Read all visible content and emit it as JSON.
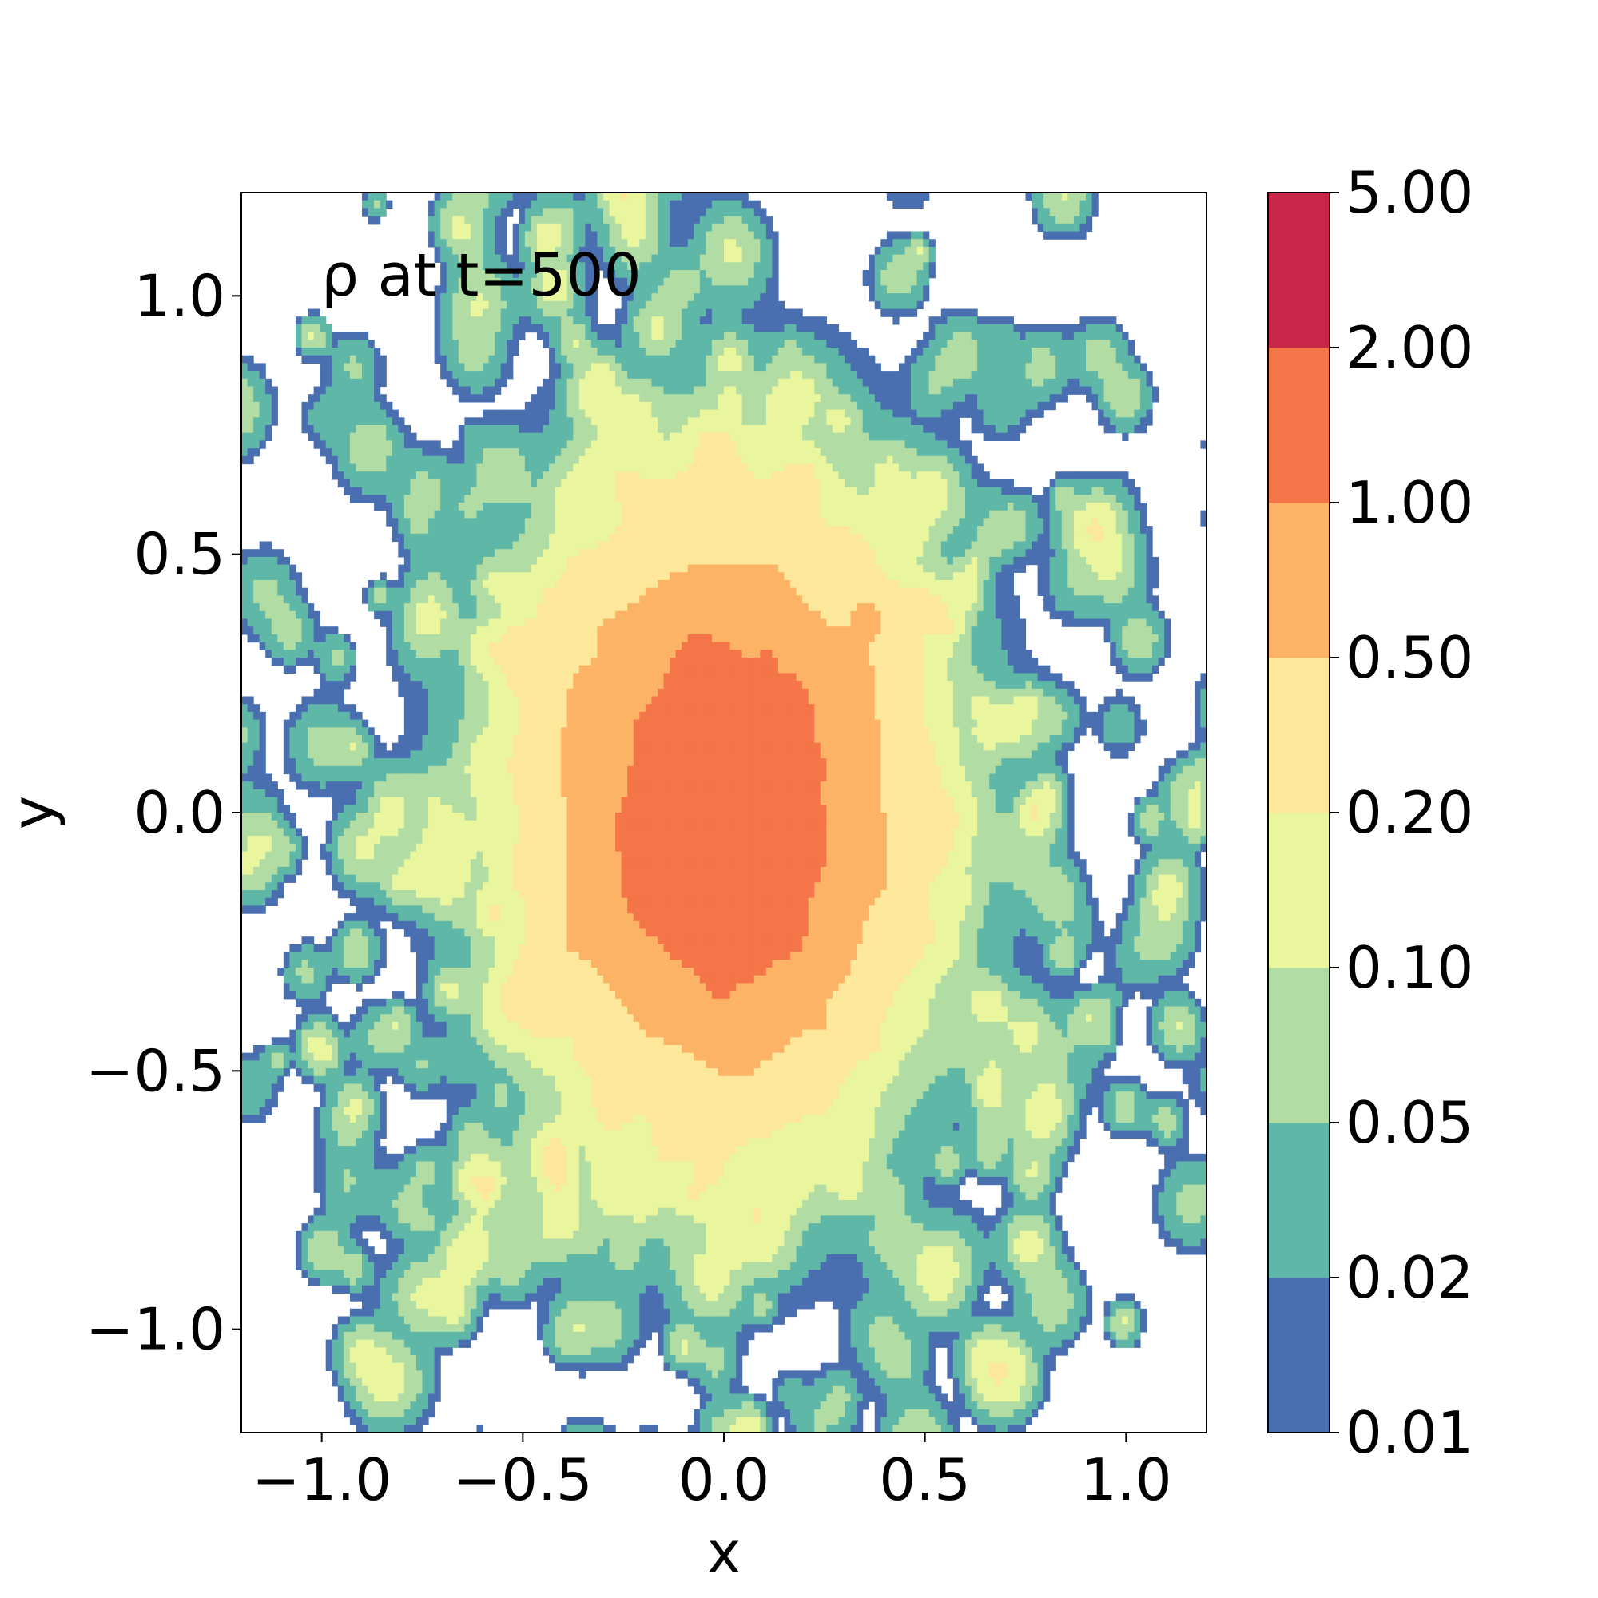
{
  "chart_data": {
    "type": "heatmap",
    "subtype": "filled-contour",
    "title": "",
    "annotation": "ρ at t=500",
    "xlabel": "x",
    "ylabel": "y",
    "xlim": [
      -1.2,
      1.2
    ],
    "ylim": [
      -1.2,
      1.2
    ],
    "xticks": [
      -1.0,
      -0.5,
      0.0,
      0.5,
      1.0
    ],
    "xtick_labels": [
      "−1.0",
      "−0.5",
      "0.0",
      "0.5",
      "1.0"
    ],
    "yticks": [
      1.0,
      0.5,
      0.0,
      -0.5,
      -1.0
    ],
    "ytick_labels": [
      "1.0",
      "0.5",
      "0.0",
      "−0.5",
      "−1.0"
    ],
    "grid": false,
    "colorbar": {
      "levels": [
        0.01,
        0.02,
        0.05,
        0.1,
        0.2,
        0.5,
        1.0,
        2.0,
        5.0
      ],
      "labels": [
        "0.01",
        "0.02",
        "0.05",
        "0.10",
        "0.20",
        "0.50",
        "1.00",
        "2.00",
        "5.00"
      ],
      "colors": [
        "#4a6fb1",
        "#5fb8a7",
        "#b1dca3",
        "#eaf69e",
        "#fce79a",
        "#fcb366",
        "#f47548",
        "#c9274a"
      ],
      "scale": "log"
    },
    "field": {
      "description_levels": "density blob centered near origin",
      "core_value": 1.5,
      "center": [
        0.0,
        0.0
      ]
    }
  }
}
